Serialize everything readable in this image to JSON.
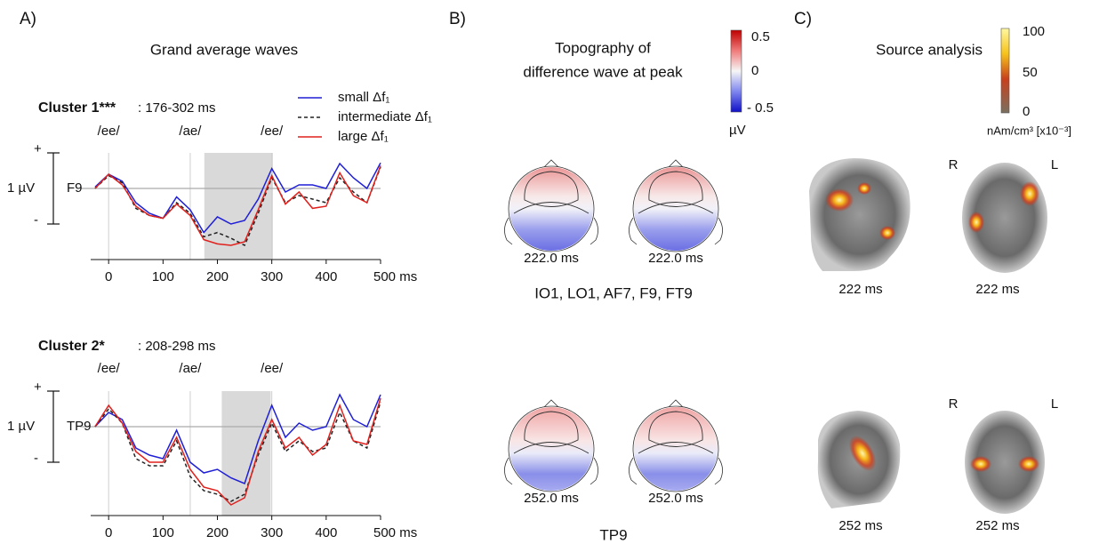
{
  "panel_a": {
    "label": "A)",
    "title": "Grand average waves"
  },
  "chart_data": [
    {
      "type": "line",
      "title": "Cluster 1***",
      "window": ": 176-302 ms",
      "window_range": [
        176,
        302
      ],
      "channel": "F9",
      "ylabel": "1 µV",
      "legend": true,
      "annotations": [
        {
          "text": "/ee/",
          "x": 0
        },
        {
          "text": "/ae/",
          "x": 150
        },
        {
          "text": "/ee/",
          "x": 300
        }
      ],
      "xlim": [
        -33,
        500
      ],
      "ylim": [
        -1,
        0.5
      ],
      "xticks": [
        0,
        100,
        200,
        300,
        400,
        {
          "value": 500,
          "label": "500 ms"
        }
      ],
      "yticks": [
        {
          "value": 0.5,
          "label": "+"
        },
        {
          "value": -0.5,
          "label": "-"
        }
      ],
      "x": [
        -25,
        0,
        25,
        50,
        75,
        100,
        125,
        150,
        175,
        200,
        225,
        250,
        275,
        300,
        325,
        350,
        375,
        400,
        425,
        450,
        475,
        500
      ],
      "series": [
        {
          "name": "small Δf₁",
          "color": "#1f1fd6",
          "dash": false,
          "values": [
            0.02,
            0.2,
            0.1,
            -0.2,
            -0.35,
            -0.42,
            -0.12,
            -0.3,
            -0.62,
            -0.4,
            -0.5,
            -0.45,
            -0.15,
            0.28,
            -0.05,
            0.05,
            0.05,
            0.0,
            0.35,
            0.15,
            0.0,
            0.36
          ]
        },
        {
          "name": "intermediate Δf₁",
          "color": "#222222",
          "dash": true,
          "values": [
            0.0,
            0.18,
            0.08,
            -0.28,
            -0.38,
            -0.42,
            -0.2,
            -0.35,
            -0.68,
            -0.62,
            -0.7,
            -0.8,
            -0.35,
            0.15,
            -0.2,
            -0.1,
            -0.15,
            -0.2,
            0.15,
            -0.05,
            -0.2,
            0.3
          ]
        },
        {
          "name": "large Δf₁",
          "color": "#e0201c",
          "dash": false,
          "values": [
            0.0,
            0.2,
            0.05,
            -0.25,
            -0.38,
            -0.42,
            -0.22,
            -0.38,
            -0.72,
            -0.78,
            -0.8,
            -0.75,
            -0.3,
            0.18,
            -0.22,
            -0.05,
            -0.28,
            -0.25,
            0.22,
            -0.1,
            -0.2,
            0.32
          ]
        }
      ]
    },
    {
      "type": "line",
      "title": "Cluster 2*",
      "window": ": 208-298 ms",
      "window_range": [
        208,
        298
      ],
      "channel": "TP9",
      "ylabel": "1 µV",
      "legend": false,
      "annotations": [
        {
          "text": "/ee/",
          "x": 0
        },
        {
          "text": "/ae/",
          "x": 150
        },
        {
          "text": "/ee/",
          "x": 300
        }
      ],
      "xlim": [
        -33,
        500
      ],
      "ylim": [
        -1.25,
        0.5
      ],
      "xticks": [
        0,
        100,
        200,
        300,
        400,
        {
          "value": 500,
          "label": "500 ms"
        }
      ],
      "yticks": [
        {
          "value": 0.5,
          "label": "+"
        },
        {
          "value": -0.5,
          "label": "-"
        }
      ],
      "x": [
        -25,
        0,
        25,
        50,
        75,
        100,
        125,
        150,
        175,
        200,
        225,
        250,
        275,
        300,
        325,
        350,
        375,
        400,
        425,
        450,
        475,
        500
      ],
      "series": [
        {
          "color": "#1f1fd6",
          "dash": false,
          "values": [
            0.0,
            0.2,
            0.1,
            -0.3,
            -0.4,
            -0.45,
            -0.05,
            -0.5,
            -0.65,
            -0.6,
            -0.72,
            -0.8,
            -0.2,
            0.3,
            -0.15,
            0.05,
            -0.05,
            0.0,
            0.45,
            0.1,
            0.0,
            0.45
          ]
        },
        {
          "color": "#222222",
          "dash": true,
          "values": [
            0.0,
            0.25,
            0.05,
            -0.45,
            -0.55,
            -0.55,
            -0.2,
            -0.7,
            -0.9,
            -0.95,
            -1.05,
            -0.95,
            -0.4,
            0.05,
            -0.35,
            -0.2,
            -0.35,
            -0.3,
            0.2,
            -0.2,
            -0.3,
            0.35
          ]
        },
        {
          "color": "#e0201c",
          "dash": false,
          "values": [
            0.0,
            0.3,
            0.05,
            -0.35,
            -0.5,
            -0.5,
            -0.15,
            -0.6,
            -0.85,
            -0.9,
            -1.1,
            -1.0,
            -0.35,
            0.1,
            -0.3,
            -0.15,
            -0.4,
            -0.25,
            0.3,
            -0.2,
            -0.25,
            0.4
          ]
        }
      ]
    }
  ],
  "panel_b": {
    "label": "B)",
    "title_lines": [
      "Topography of",
      "difference wave at peak"
    ],
    "colorbar": {
      "ticks": [
        "0.5",
        "0",
        "- 0.5"
      ],
      "unit": "µV"
    },
    "rows": [
      {
        "times": [
          "222.0 ms",
          "222.0 ms"
        ],
        "electrodes": "IO1, LO1, AF7, F9, FT9"
      },
      {
        "times": [
          "252.0 ms",
          "252.0 ms"
        ],
        "electrodes": "TP9"
      }
    ]
  },
  "panel_c": {
    "label": "C)",
    "title": "Source analysis",
    "colorbar": {
      "ticks": [
        "100",
        "50",
        "0"
      ],
      "unit": "nAm/cm³ [x10⁻³]"
    },
    "rows": [
      {
        "times": [
          "222 ms",
          "222 ms"
        ],
        "right": "R",
        "left": "L"
      },
      {
        "times": [
          "252 ms",
          "252 ms"
        ],
        "right": "R",
        "left": "L"
      }
    ]
  }
}
